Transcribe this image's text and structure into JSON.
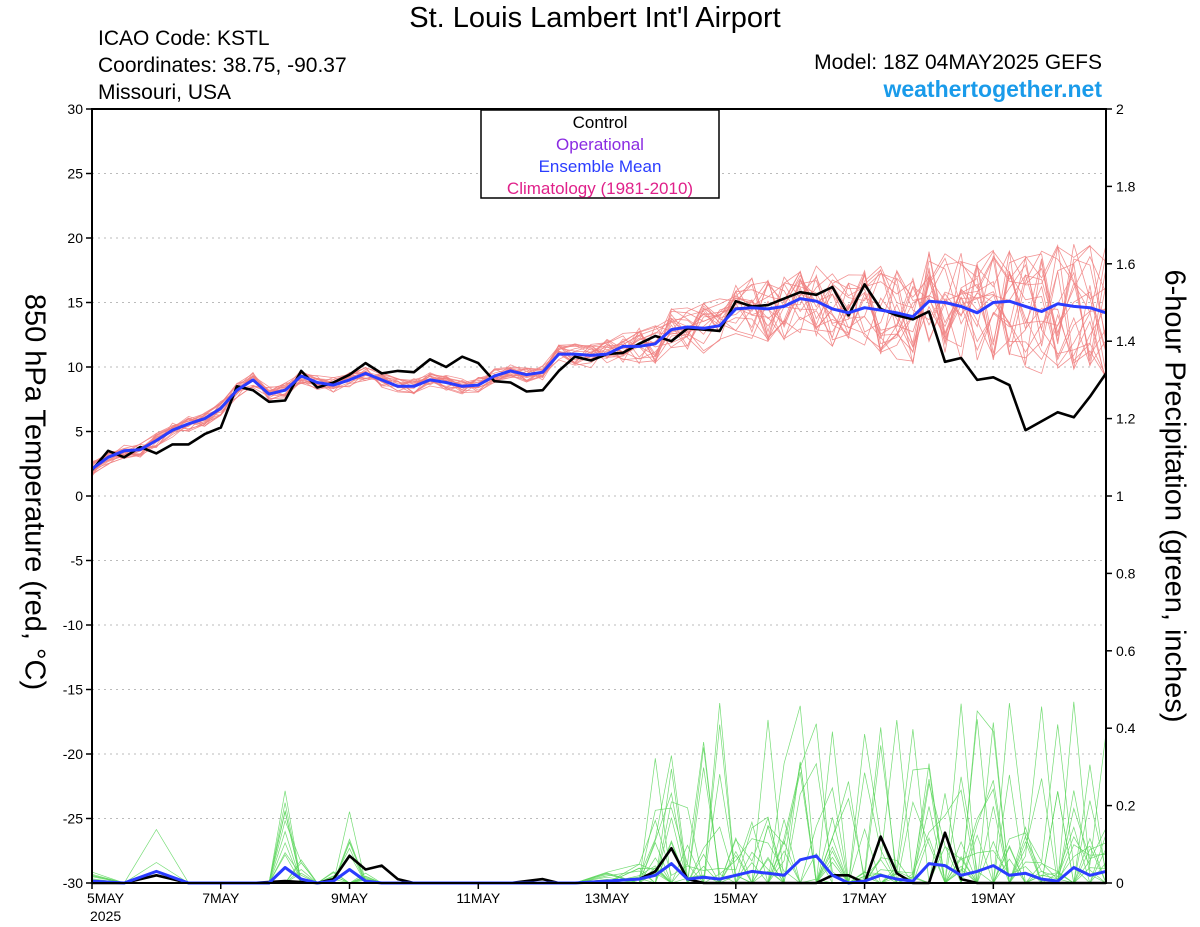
{
  "header": {
    "title": "St. Louis Lambert Int'l Airport",
    "icao": "ICAO Code: KSTL",
    "coordinates": "Coordinates: 38.75, -90.37",
    "location": "Missouri, USA",
    "model": "Model: 18Z 04MAY2025 GEFS",
    "site": "weathertogether.net"
  },
  "colors": {
    "control": "#000000",
    "operational": "#8a2be2",
    "ensemble_mean": "#2a3cff",
    "climatology": "#e0218a",
    "temp_members": "#f08080",
    "precip_members": "#5cd65c",
    "grid": "#bbbbbb"
  },
  "chart_data": {
    "type": "line",
    "ylabel_left": "850 hPa Temperature (red, °C)",
    "ylabel_right": "6-hour Precipitation (green, inches)",
    "ylim_left": [
      -30,
      30
    ],
    "ylim_right": [
      0,
      2
    ],
    "yticks_left": [
      "30",
      "25",
      "20",
      "15",
      "10",
      "5",
      "0",
      "-5",
      "-10",
      "-15",
      "-20",
      "-25",
      "-30"
    ],
    "yticks_right": [
      "2",
      "1.8",
      "1.6",
      "1.4",
      "1.2",
      "1",
      "0.8",
      "0.6",
      "0.4",
      "0.2",
      "0"
    ],
    "xticks": [
      "5MAY",
      "7MAY",
      "9MAY",
      "11MAY",
      "13MAY",
      "15MAY",
      "17MAY",
      "19MAY"
    ],
    "xtick_year": "2025",
    "x_range_days": [
      5.0,
      20.75
    ],
    "grid": "horizontal dotted",
    "legend": {
      "placement": "top-center",
      "entries": [
        "Control",
        "Operational",
        "Ensemble Mean",
        "Climatology (1981-2010)"
      ]
    },
    "series": [
      {
        "name": "Control",
        "axis": "left",
        "x": [
          5.0,
          5.25,
          5.5,
          5.75,
          6.0,
          6.25,
          6.5,
          6.75,
          7.0,
          7.25,
          7.5,
          7.75,
          8.0,
          8.25,
          8.5,
          8.75,
          9.0,
          9.25,
          9.5,
          9.75,
          10.0,
          10.25,
          10.5,
          10.75,
          11.0,
          11.25,
          11.5,
          11.75,
          12.0,
          12.25,
          12.5,
          12.75,
          13.0,
          13.25,
          13.5,
          13.75,
          14.0,
          14.25,
          14.5,
          14.75,
          15.0,
          15.25,
          15.5,
          15.75,
          16.0,
          16.25,
          16.5,
          16.75,
          17.0,
          17.25,
          17.5,
          17.75,
          18.0,
          18.25,
          18.5,
          18.75,
          19.0,
          19.25,
          19.5,
          19.75,
          20.0,
          20.25,
          20.5,
          20.75
        ],
        "values": [
          2.0,
          3.5,
          3.0,
          3.8,
          3.3,
          4.0,
          4.0,
          4.8,
          5.3,
          8.5,
          8.2,
          7.3,
          7.4,
          9.7,
          8.4,
          8.8,
          9.4,
          10.3,
          9.5,
          9.7,
          9.6,
          10.6,
          10.0,
          10.8,
          10.3,
          8.9,
          8.8,
          8.1,
          8.2,
          9.7,
          10.8,
          10.5,
          11.0,
          11.1,
          11.8,
          12.4,
          12.0,
          13.0,
          12.9,
          12.8,
          15.1,
          14.7,
          14.8,
          15.3,
          15.8,
          15.6,
          16.2,
          14.0,
          16.4,
          14.5,
          14.0,
          13.7,
          14.3,
          10.4,
          10.7,
          9.0,
          9.2,
          8.6,
          5.1,
          5.8,
          6.5,
          6.1,
          7.7,
          9.5
        ]
      },
      {
        "name": "Ensemble Mean",
        "axis": "left",
        "x": [
          5.0,
          5.25,
          5.5,
          5.75,
          6.0,
          6.25,
          6.5,
          6.75,
          7.0,
          7.25,
          7.5,
          7.75,
          8.0,
          8.25,
          8.5,
          8.75,
          9.0,
          9.25,
          9.5,
          9.75,
          10.0,
          10.25,
          10.5,
          10.75,
          11.0,
          11.25,
          11.5,
          11.75,
          12.0,
          12.25,
          12.5,
          12.75,
          13.0,
          13.25,
          13.5,
          13.75,
          14.0,
          14.25,
          14.5,
          14.75,
          15.0,
          15.25,
          15.5,
          15.75,
          16.0,
          16.25,
          16.5,
          16.75,
          17.0,
          17.25,
          17.5,
          17.75,
          18.0,
          18.25,
          18.5,
          18.75,
          19.0,
          19.25,
          19.5,
          19.75,
          20.0,
          20.25,
          20.5,
          20.75
        ],
        "values": [
          2.1,
          3.0,
          3.5,
          3.6,
          4.3,
          5.1,
          5.6,
          6.0,
          6.8,
          8.2,
          9.0,
          7.9,
          8.2,
          9.3,
          8.8,
          8.6,
          9.0,
          9.5,
          9.0,
          8.5,
          8.5,
          9.0,
          8.8,
          8.5,
          8.6,
          9.3,
          9.7,
          9.4,
          9.6,
          11.0,
          11.0,
          10.9,
          11.0,
          11.6,
          11.6,
          11.8,
          12.9,
          13.1,
          13.0,
          13.2,
          14.5,
          14.6,
          14.5,
          14.7,
          15.3,
          15.1,
          14.5,
          14.2,
          14.6,
          14.4,
          14.2,
          13.9,
          15.1,
          15.0,
          14.7,
          14.2,
          15.0,
          15.1,
          14.7,
          14.3,
          14.9,
          14.7,
          14.6,
          14.2
        ]
      },
      {
        "name": "Control precipitation",
        "axis": "right",
        "x": [
          5.0,
          5.5,
          6.0,
          6.5,
          7.0,
          7.5,
          8.0,
          8.5,
          8.75,
          9.0,
          9.25,
          9.5,
          9.75,
          10.0,
          10.5,
          11.0,
          11.5,
          12.0,
          12.25,
          12.5,
          13.0,
          13.5,
          13.75,
          14.0,
          14.25,
          14.5,
          15.0,
          15.5,
          16.0,
          16.25,
          16.5,
          16.75,
          17.0,
          17.25,
          17.5,
          17.75,
          18.0,
          18.25,
          18.5,
          18.75,
          19.0,
          19.5,
          20.0,
          20.5,
          20.75
        ],
        "values": [
          0.0,
          0.0,
          0.02,
          0.0,
          0.0,
          0.0,
          0.005,
          0.0,
          0.01,
          0.07,
          0.035,
          0.045,
          0.01,
          0.0,
          0.0,
          0.0,
          0.0,
          0.01,
          0.0,
          0.0,
          0.005,
          0.01,
          0.03,
          0.09,
          0.01,
          0.0,
          0.0,
          0.0,
          0.0,
          0.0,
          0.02,
          0.02,
          0.0,
          0.12,
          0.025,
          0.0,
          0.0,
          0.13,
          0.01,
          0.0,
          0.0,
          0.0,
          0.0,
          0.0,
          0.0
        ]
      },
      {
        "name": "Ensemble Mean precipitation",
        "axis": "right",
        "x": [
          5.0,
          5.5,
          6.0,
          6.5,
          7.0,
          7.5,
          7.75,
          8.0,
          8.25,
          8.5,
          8.75,
          9.0,
          9.25,
          9.5,
          9.75,
          10.0,
          10.5,
          11.0,
          11.5,
          12.0,
          12.5,
          13.0,
          13.5,
          13.75,
          14.0,
          14.25,
          14.5,
          14.75,
          15.0,
          15.25,
          15.5,
          15.75,
          16.0,
          16.25,
          16.5,
          16.75,
          17.0,
          17.25,
          17.5,
          17.75,
          18.0,
          18.25,
          18.5,
          18.75,
          19.0,
          19.25,
          19.5,
          19.75,
          20.0,
          20.25,
          20.5,
          20.75
        ],
        "values": [
          0.005,
          0.0,
          0.03,
          0.0,
          0.0,
          0.0,
          0.0,
          0.04,
          0.01,
          0.0,
          0.005,
          0.035,
          0.005,
          0.0,
          0.0,
          0.0,
          0.0,
          0.0,
          0.0,
          0.0,
          0.0,
          0.005,
          0.01,
          0.02,
          0.05,
          0.01,
          0.015,
          0.01,
          0.02,
          0.03,
          0.025,
          0.02,
          0.06,
          0.07,
          0.02,
          0.0,
          0.005,
          0.02,
          0.01,
          0.005,
          0.05,
          0.045,
          0.02,
          0.03,
          0.045,
          0.02,
          0.025,
          0.01,
          0.005,
          0.04,
          0.02,
          0.03
        ]
      }
    ]
  }
}
